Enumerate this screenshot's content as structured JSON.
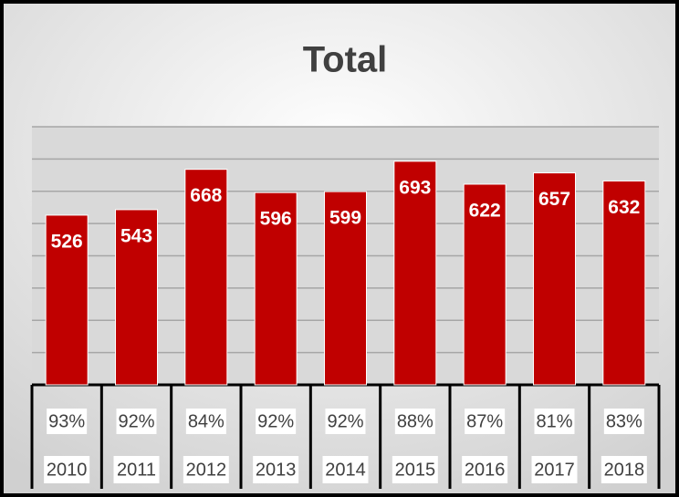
{
  "chart_data": {
    "type": "bar",
    "title": "Total",
    "categories": [
      "2010",
      "2011",
      "2012",
      "2013",
      "2014",
      "2015",
      "2016",
      "2017",
      "2018"
    ],
    "values": [
      526,
      543,
      668,
      596,
      599,
      693,
      622,
      657,
      632
    ],
    "rates": [
      "93%",
      "92%",
      "84%",
      "92%",
      "92%",
      "88%",
      "87%",
      "81%",
      "83%"
    ],
    "color": "#c00000",
    "ylim": [
      0,
      800
    ],
    "yticks": [
      0,
      100,
      200,
      300,
      400,
      500,
      600,
      700,
      800
    ],
    "grid": true
  }
}
